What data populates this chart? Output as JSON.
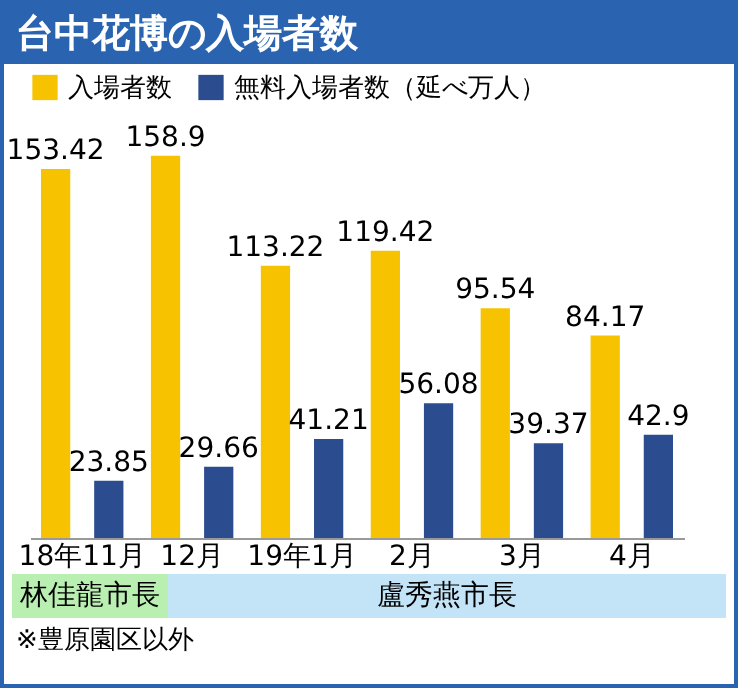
{
  "chart_data": {
    "type": "bar",
    "title": "台中花博の入場者数",
    "categories": [
      "18年11月",
      "12月",
      "19年1月",
      "2月",
      "3月",
      "4月"
    ],
    "series": [
      {
        "name": "入場者数",
        "color": "#f7c300",
        "values": [
          153.42,
          158.9,
          113.22,
          119.42,
          95.54,
          84.17
        ]
      },
      {
        "name": "無料入場者数（延べ万人）",
        "color": "#2b4c8f",
        "values": [
          23.85,
          29.66,
          41.21,
          56.08,
          39.37,
          42.9
        ]
      }
    ],
    "data_labels": true,
    "legend": "top",
    "grid": false,
    "annotations": [
      "林佳龍市長",
      "盧秀燕市長",
      "※豊原園区以外"
    ]
  }
}
